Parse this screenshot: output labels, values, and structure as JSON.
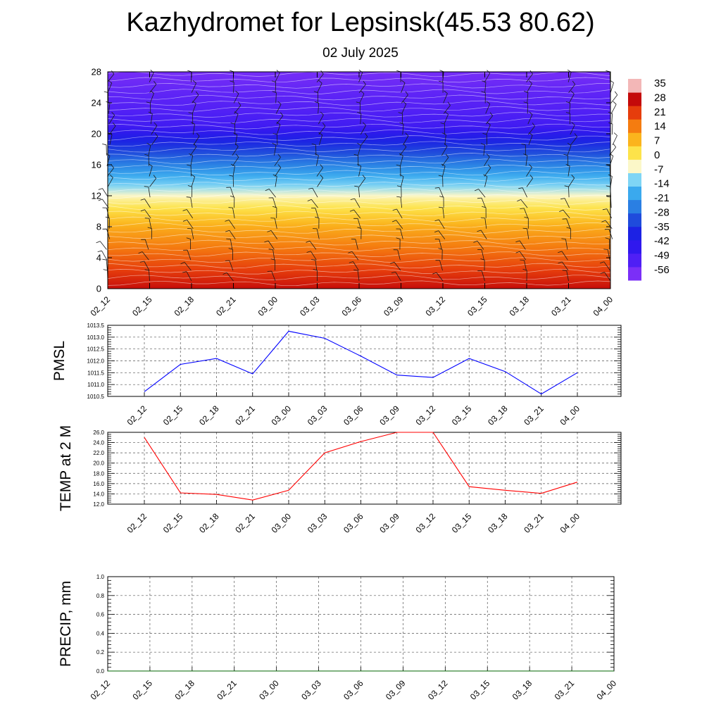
{
  "title": "Kazhydromet for Lepsinsk(45.53 80.62)",
  "subtitle": "02 July 2025",
  "chart_data": [
    {
      "type": "heatmap",
      "panel": "cross-section",
      "x": [
        "02_12",
        "02_15",
        "02_18",
        "02_21",
        "03_00",
        "03_03",
        "03_06",
        "03_09",
        "03_12",
        "03_15",
        "03_18",
        "03_21",
        "04_00"
      ],
      "y_ticks": [
        0,
        4,
        8,
        12,
        16,
        20,
        24,
        28
      ],
      "ylim": [
        0,
        28
      ],
      "temperature_profile": {
        "heights": [
          0,
          2,
          4,
          6,
          8,
          10,
          11.5,
          12.5,
          13.5,
          15,
          17,
          19,
          21,
          23,
          25,
          27,
          28
        ],
        "values": [
          34,
          28,
          23,
          18,
          13,
          6,
          0,
          -6,
          -12,
          -20,
          -30,
          -40,
          -52,
          -56,
          -58,
          -61,
          -62
        ]
      },
      "contour_lines": "white",
      "wind_barbs": true,
      "colorbar": {
        "labels": [
          "35",
          "28",
          "21",
          "14",
          "7",
          "0",
          "-7",
          "-14",
          "-21",
          "-28",
          "-35",
          "-42",
          "-49",
          "-56"
        ],
        "colors": [
          "#7b2ff7",
          "#4f1ff5",
          "#3018ee",
          "#1c22e4",
          "#1f4bdc",
          "#2a7fe3",
          "#3aa9ee",
          "#7fd5f5",
          "#fbf7c8",
          "#fde34a",
          "#fbb41d",
          "#f57c10",
          "#e63d0c",
          "#c40a0a",
          "#f3b7b7"
        ],
        "range": [
          -63,
          42
        ]
      }
    },
    {
      "type": "line",
      "panel": "pmsl",
      "ylabel": "PMSL",
      "x": [
        "02_12",
        "02_15",
        "02_18",
        "02_21",
        "03_00",
        "03_03",
        "03_06",
        "03_09",
        "03_12",
        "03_15",
        "03_18",
        "03_21",
        "04_00"
      ],
      "series": [
        {
          "color": "#0000ff",
          "values": [
            1010.7,
            1011.85,
            1012.1,
            1011.45,
            1013.25,
            1012.95,
            1012.2,
            1011.4,
            1011.3,
            1012.1,
            1011.55,
            1010.6,
            1011.5
          ]
        }
      ],
      "ylim": [
        1010.5,
        1013.5
      ],
      "yticks": [
        "1010.5",
        "1011.0",
        "1011.5",
        "1012.0",
        "1012.5",
        "1013.0",
        "1013.5"
      ],
      "grid": true
    },
    {
      "type": "line",
      "panel": "temp2m",
      "ylabel": "TEMP at 2 M",
      "x": [
        "02_12",
        "02_15",
        "02_18",
        "02_21",
        "03_00",
        "03_03",
        "03_06",
        "03_09",
        "03_12",
        "03_15",
        "03_18",
        "03_21",
        "04_00"
      ],
      "series": [
        {
          "color": "#ff0000",
          "values": [
            25.0,
            14.2,
            13.9,
            12.8,
            14.7,
            22.0,
            24.2,
            26.0,
            26.0,
            15.4,
            14.7,
            14.1,
            16.3
          ]
        }
      ],
      "ylim": [
        12,
        26
      ],
      "yticks": [
        "12.0",
        "14.0",
        "16.0",
        "18.0",
        "20.0",
        "22.0",
        "24.0",
        "26.0"
      ],
      "grid": true
    },
    {
      "type": "line",
      "panel": "precip",
      "ylabel": "PRECIP, mm",
      "x": [
        "02_12",
        "02_15",
        "02_18",
        "02_21",
        "03_00",
        "03_03",
        "03_06",
        "03_09",
        "03_12",
        "03_15",
        "03_18",
        "03_21",
        "04_00"
      ],
      "series": [
        {
          "color": "#006400",
          "values": [
            0,
            0,
            0,
            0,
            0,
            0,
            0,
            0,
            0,
            0,
            0,
            0,
            0
          ]
        }
      ],
      "ylim": [
        0,
        1
      ],
      "yticks": [
        "0.0",
        "0.2",
        "0.4",
        "0.6",
        "0.8",
        "1.0"
      ],
      "grid": true
    }
  ]
}
